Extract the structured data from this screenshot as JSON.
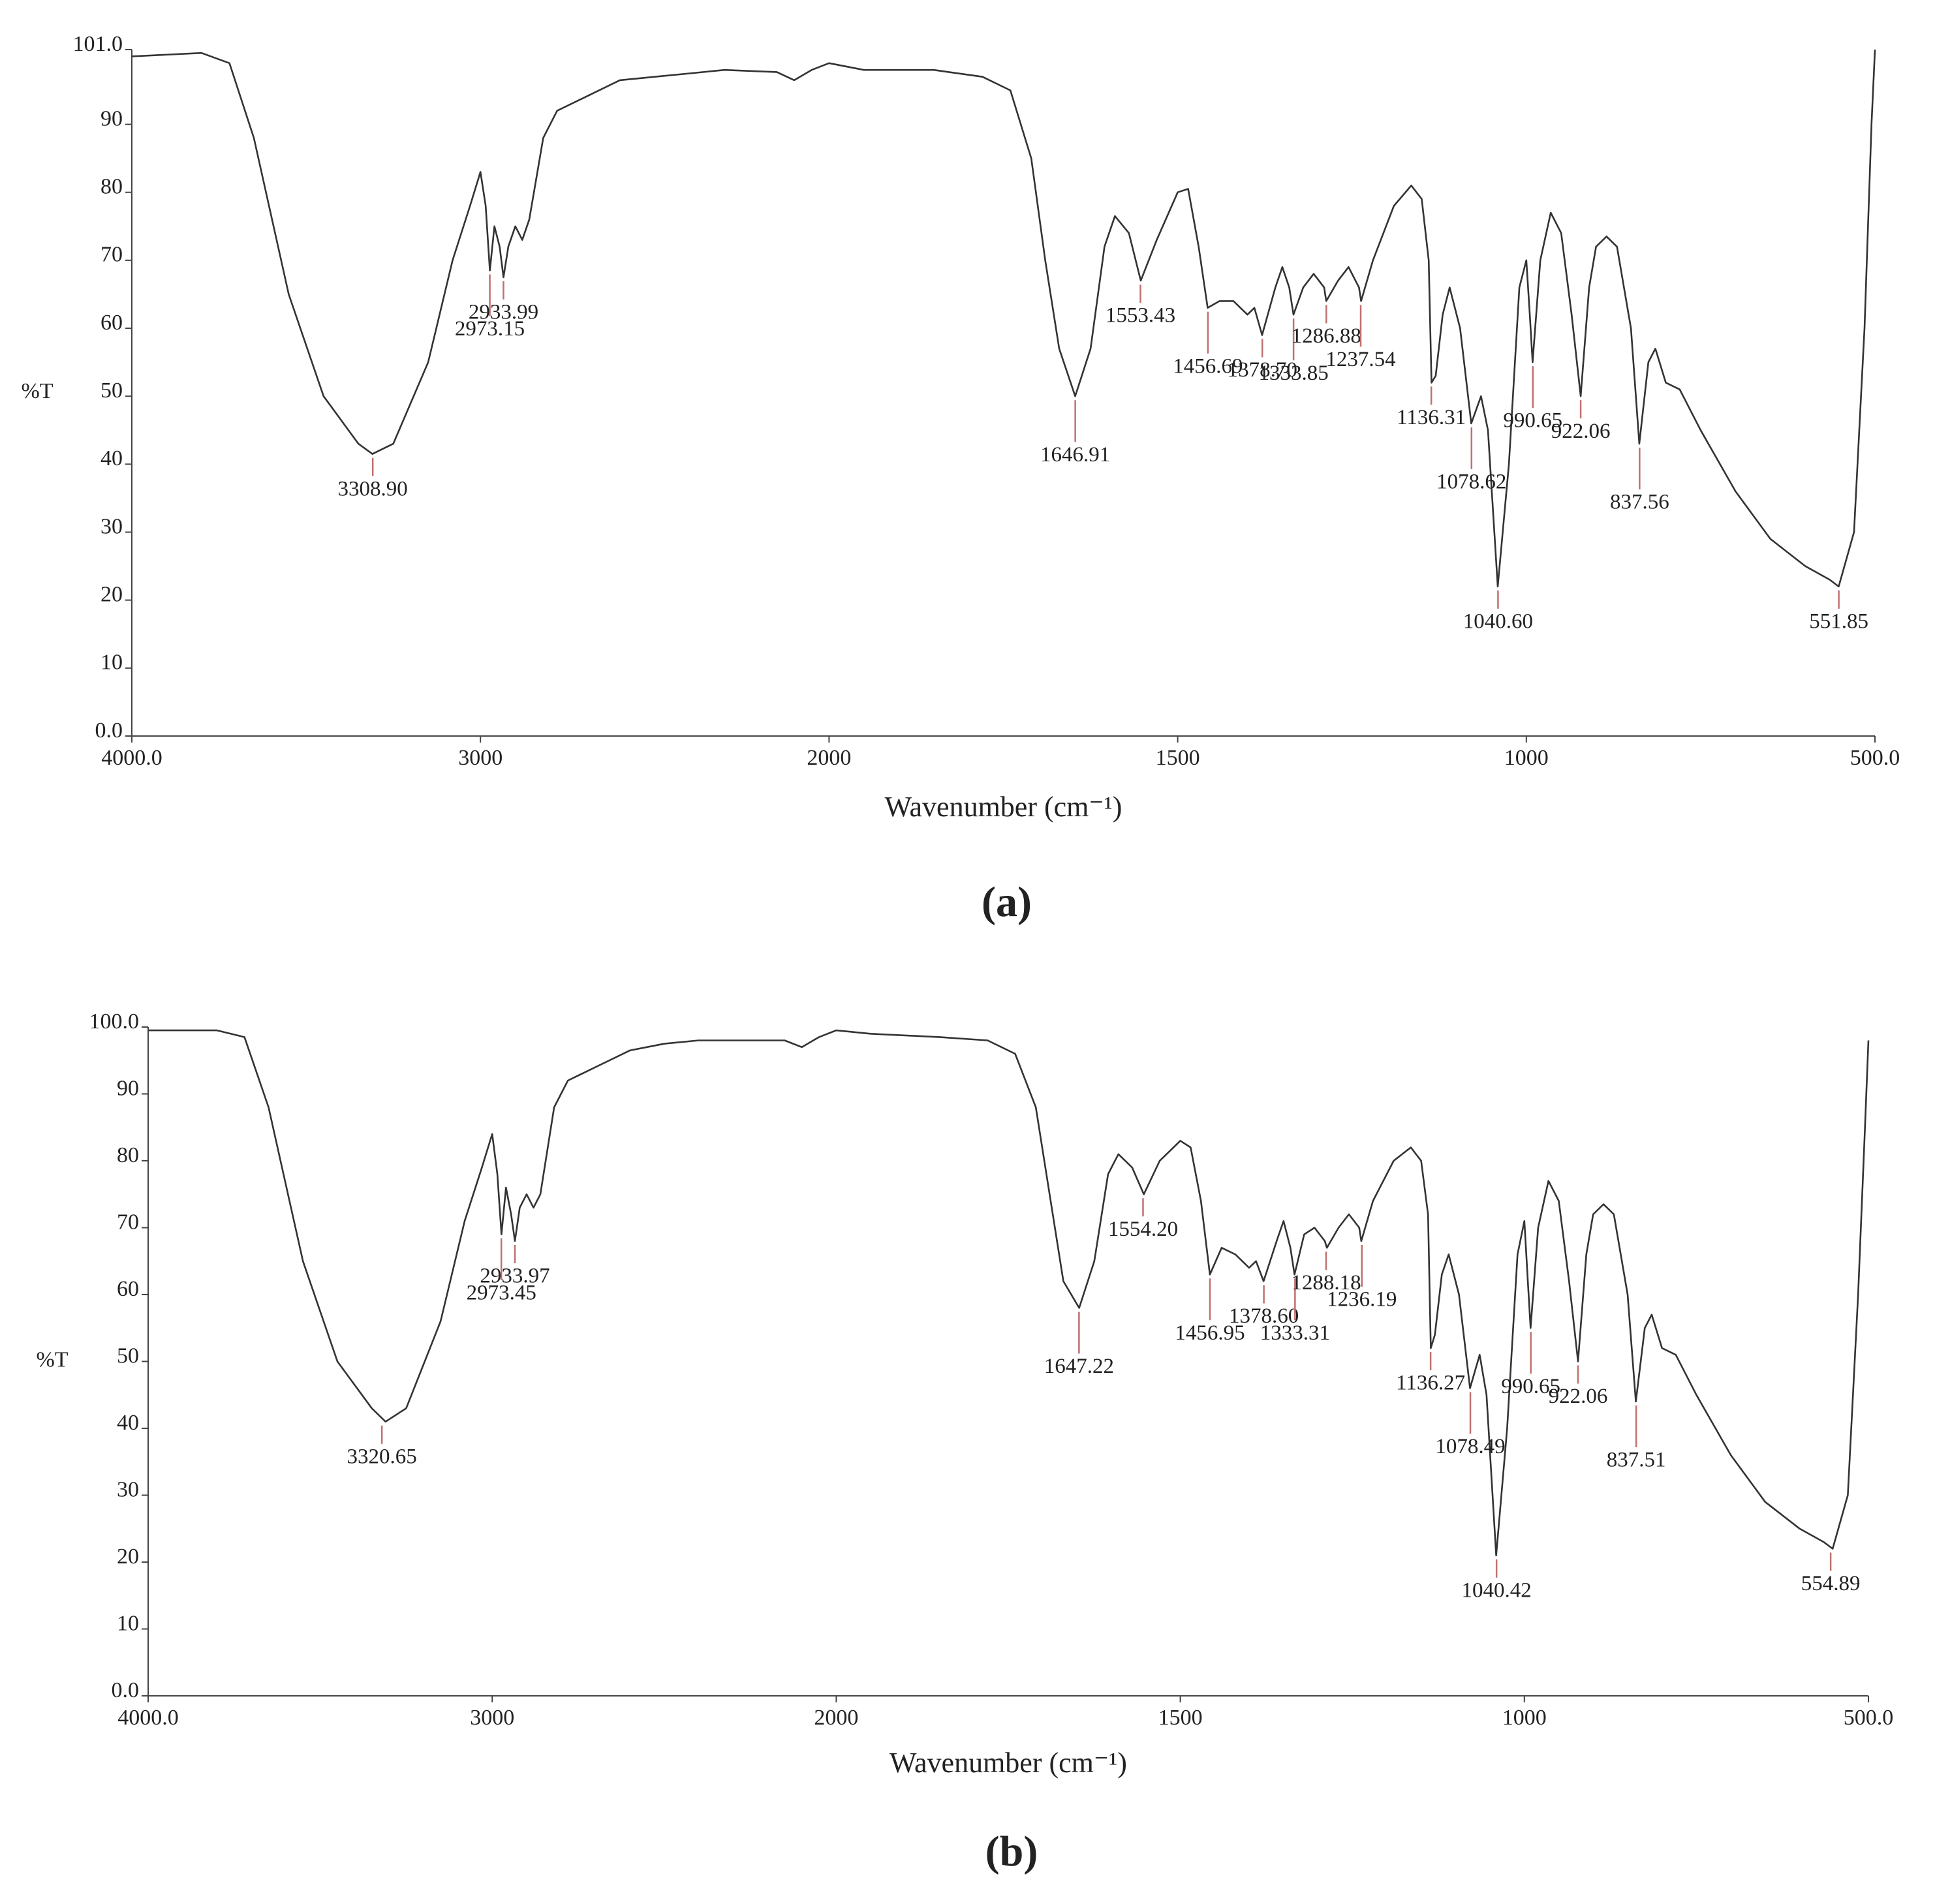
{
  "chart_data": [
    {
      "type": "line",
      "caption": "(a)",
      "x_label": "Wavenumber (cm⁻¹)",
      "y_label": "%T",
      "color": "#333333",
      "annotation_color": "#c07070",
      "xlim": [
        4000,
        500
      ],
      "xticks": [
        {
          "value": 4000,
          "label": "4000.0"
        },
        3000,
        2000,
        1500,
        1000,
        {
          "value": 500,
          "label": "500.0"
        }
      ],
      "ylim": [
        0,
        101
      ],
      "yticks": [
        {
          "value": 0,
          "label": "0.0"
        },
        10,
        20,
        30,
        40,
        50,
        60,
        70,
        80,
        90,
        {
          "value": 101,
          "label": "101.0"
        }
      ],
      "x": [
        4000,
        3800,
        3720,
        3650,
        3550,
        3450,
        3350,
        3310,
        3250,
        3150,
        3080,
        3030,
        3000,
        2985,
        2973,
        2960,
        2945,
        2934,
        2920,
        2900,
        2880,
        2860,
        2820,
        2780,
        2700,
        2600,
        2500,
        2400,
        2300,
        2150,
        2100,
        2050,
        2000,
        1950,
        1850,
        1780,
        1740,
        1710,
        1690,
        1670,
        1647,
        1625,
        1605,
        1590,
        1570,
        1553,
        1530,
        1500,
        1485,
        1470,
        1457,
        1440,
        1420,
        1400,
        1390,
        1379,
        1360,
        1350,
        1340,
        1334,
        1320,
        1305,
        1290,
        1287,
        1270,
        1255,
        1240,
        1237,
        1220,
        1190,
        1165,
        1150,
        1140,
        1136,
        1130,
        1120,
        1110,
        1095,
        1079,
        1065,
        1055,
        1041,
        1025,
        1010,
        1000,
        995,
        991,
        980,
        965,
        950,
        935,
        922,
        910,
        900,
        885,
        870,
        850,
        838,
        825,
        815,
        800,
        780,
        750,
        700,
        650,
        600,
        565,
        552,
        530,
        515,
        505,
        500
      ],
      "values": [
        100,
        100.5,
        99,
        88,
        65,
        50,
        43,
        41.5,
        43,
        55,
        70,
        78,
        83,
        78,
        68.5,
        75,
        72,
        67.5,
        72,
        75,
        73,
        76,
        88,
        92,
        94,
        96.5,
        97,
        97.5,
        98,
        97.7,
        96.5,
        98,
        99,
        98,
        98,
        97,
        95,
        85,
        70,
        57,
        50,
        57,
        72,
        76.5,
        74,
        67,
        73,
        80,
        80.5,
        72,
        63,
        64,
        64,
        62,
        63,
        59,
        66,
        69,
        66,
        62,
        66,
        68,
        66,
        64,
        67,
        69,
        66,
        64,
        70,
        78,
        81,
        79,
        70,
        52,
        53,
        62,
        66,
        60,
        46,
        50,
        45,
        22,
        40,
        66,
        70,
        62,
        55,
        70,
        77,
        74,
        62,
        50,
        66,
        72,
        73.5,
        72,
        60,
        43,
        55,
        57,
        52,
        51,
        45,
        36,
        29,
        25,
        23,
        22,
        30,
        60,
        90,
        101
      ],
      "annotations": [
        {
          "x": 3308.9,
          "y": 41.5,
          "label": "3308.90"
        },
        {
          "x": 2973.15,
          "y": 68.5,
          "label": "2973.15"
        },
        {
          "x": 2933.99,
          "y": 67.5,
          "label": "2933.99"
        },
        {
          "x": 1646.91,
          "y": 50,
          "label": "1646.91"
        },
        {
          "x": 1553.43,
          "y": 67,
          "label": "1553.43"
        },
        {
          "x": 1456.69,
          "y": 63,
          "label": "1456.69"
        },
        {
          "x": 1378.7,
          "y": 59,
          "label": "1378.70"
        },
        {
          "x": 1333.85,
          "y": 62,
          "label": "1333.85"
        },
        {
          "x": 1286.88,
          "y": 64,
          "label": "1286.88"
        },
        {
          "x": 1237.54,
          "y": 64,
          "label": "1237.54"
        },
        {
          "x": 1136.31,
          "y": 52,
          "label": "1136.31"
        },
        {
          "x": 1078.62,
          "y": 46,
          "label": "1078.62"
        },
        {
          "x": 1040.6,
          "y": 22,
          "label": "1040.60"
        },
        {
          "x": 990.65,
          "y": 55,
          "label": "990.65"
        },
        {
          "x": 922.06,
          "y": 50,
          "label": "922.06"
        },
        {
          "x": 837.56,
          "y": 43,
          "label": "837.56"
        },
        {
          "x": 551.85,
          "y": 22,
          "label": "551.85"
        }
      ]
    },
    {
      "type": "line",
      "caption": "(b)",
      "x_label": "Wavenumber (cm⁻¹)",
      "y_label": "%T",
      "color": "#333333",
      "annotation_color": "#c07070",
      "xlim": [
        4000,
        500
      ],
      "xticks": [
        {
          "value": 4000,
          "label": "4000.0"
        },
        3000,
        2000,
        1500,
        1000,
        {
          "value": 500,
          "label": "500.0"
        }
      ],
      "ylim": [
        0,
        100
      ],
      "yticks": [
        {
          "value": 0,
          "label": "0.0"
        },
        10,
        20,
        30,
        40,
        50,
        60,
        70,
        80,
        90,
        {
          "value": 100,
          "label": "100.0"
        }
      ],
      "x": [
        4000,
        3800,
        3720,
        3650,
        3550,
        3450,
        3350,
        3310,
        3250,
        3150,
        3080,
        3030,
        3000,
        2985,
        2973,
        2960,
        2945,
        2934,
        2920,
        2900,
        2880,
        2860,
        2820,
        2780,
        2700,
        2600,
        2500,
        2400,
        2300,
        2150,
        2100,
        2050,
        2000,
        1950,
        1850,
        1780,
        1740,
        1710,
        1690,
        1670,
        1647,
        1625,
        1605,
        1590,
        1570,
        1553,
        1530,
        1500,
        1485,
        1470,
        1457,
        1440,
        1420,
        1400,
        1390,
        1379,
        1360,
        1350,
        1340,
        1334,
        1320,
        1305,
        1290,
        1287,
        1270,
        1255,
        1240,
        1237,
        1220,
        1190,
        1165,
        1150,
        1140,
        1136,
        1130,
        1120,
        1110,
        1095,
        1079,
        1065,
        1055,
        1041,
        1025,
        1010,
        1000,
        995,
        991,
        980,
        965,
        950,
        935,
        922,
        910,
        900,
        885,
        870,
        850,
        838,
        825,
        815,
        800,
        780,
        750,
        700,
        650,
        600,
        565,
        552,
        530,
        515,
        505,
        500
      ],
      "values": [
        99.5,
        99.5,
        98.5,
        88,
        65,
        50,
        43,
        41,
        43,
        56,
        71,
        79,
        84,
        78,
        69,
        76,
        72,
        68,
        73,
        75,
        73,
        75,
        88,
        92,
        94,
        96.5,
        97.5,
        98,
        98,
        98,
        97,
        98.5,
        99.5,
        99,
        98.5,
        98,
        96,
        88,
        75,
        62,
        58,
        65,
        78,
        81,
        79,
        75,
        80,
        83,
        82,
        74,
        63,
        67,
        66,
        64,
        65,
        62,
        68,
        71,
        67,
        63,
        69,
        70,
        68,
        67,
        70,
        72,
        70,
        68,
        74,
        80,
        82,
        80,
        72,
        52,
        54,
        63,
        66,
        60,
        46,
        51,
        45,
        21,
        40,
        66,
        71,
        62,
        55,
        70,
        77,
        74,
        62,
        50,
        66,
        72,
        73.5,
        72,
        60,
        44,
        55,
        57,
        52,
        51,
        45,
        36,
        29,
        25,
        23,
        22,
        30,
        60,
        85,
        98
      ],
      "annotations": [
        {
          "x": 3320.65,
          "y": 41,
          "label": "3320.65"
        },
        {
          "x": 2973.45,
          "y": 69,
          "label": "2973.45"
        },
        {
          "x": 2933.97,
          "y": 68,
          "label": "2933.97"
        },
        {
          "x": 1647.22,
          "y": 58,
          "label": "1647.22"
        },
        {
          "x": 1554.2,
          "y": 75,
          "label": "1554.20"
        },
        {
          "x": 1456.95,
          "y": 63,
          "label": "1456.95"
        },
        {
          "x": 1378.6,
          "y": 62,
          "label": "1378.60"
        },
        {
          "x": 1333.31,
          "y": 63,
          "label": "1333.31"
        },
        {
          "x": 1288.18,
          "y": 67,
          "label": "1288.18"
        },
        {
          "x": 1236.19,
          "y": 68,
          "label": "1236.19"
        },
        {
          "x": 1136.27,
          "y": 52,
          "label": "1136.27"
        },
        {
          "x": 1078.49,
          "y": 46,
          "label": "1078.49"
        },
        {
          "x": 1040.42,
          "y": 21,
          "label": "1040.42"
        },
        {
          "x": 990.65,
          "y": 55,
          "label": "990.65"
        },
        {
          "x": 922.06,
          "y": 50,
          "label": "922.06"
        },
        {
          "x": 837.51,
          "y": 44,
          "label": "837.51"
        },
        {
          "x": 554.89,
          "y": 22,
          "label": "554.89"
        }
      ]
    }
  ]
}
